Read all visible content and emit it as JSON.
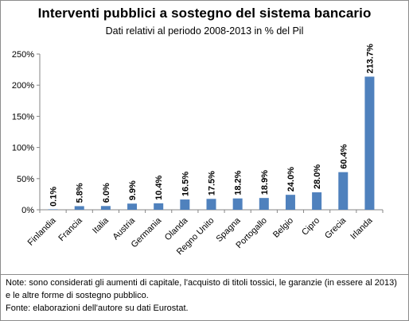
{
  "chart_data": {
    "type": "bar",
    "title": "Interventi pubblici a sostegno del sistema bancario",
    "subtitle": "Dati relativi al periodo 2008-2013 in % del Pil",
    "categories": [
      "Finlandia",
      "Francia",
      "Italia",
      "Austria",
      "Germania",
      "Olanda",
      "Regno Unito",
      "Spagna",
      "Portogallo",
      "Belgio",
      "Cipro",
      "Grecia",
      "Irlanda"
    ],
    "values": [
      0.1,
      5.8,
      6.0,
      9.9,
      10.4,
      16.5,
      17.5,
      18.2,
      18.9,
      24.0,
      28.0,
      60.4,
      213.7
    ],
    "value_labels": [
      "0.1%",
      "5.8%",
      "6.0%",
      "9.9%",
      "10.4%",
      "16.5%",
      "17.5%",
      "18.2%",
      "18.9%",
      "24.0%",
      "28.0%",
      "60.4%",
      "213.7%"
    ],
    "ylim": [
      0,
      250
    ],
    "yticks": [
      0,
      50,
      100,
      150,
      200,
      250
    ],
    "ytick_labels": [
      "0%",
      "50%",
      "100%",
      "150%",
      "200%",
      "250%"
    ],
    "xlabel": "",
    "ylabel": "",
    "grid": false,
    "bar_color": "#4f81bd"
  },
  "notes": {
    "nota": "Note: sono considerati gli aumenti di capitale, l'acquisto di titoli tossici, le garanzie (in essere al 2013) e le altre forme di sostegno pubblico.",
    "fonte": "Fonte: elaborazioni dell'autore su dati Eurostat."
  }
}
